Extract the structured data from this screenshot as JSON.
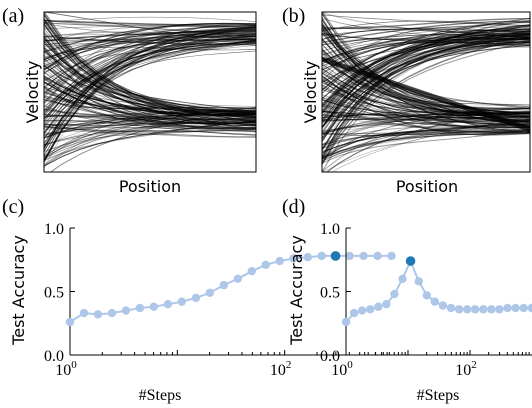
{
  "chart_data": [
    {
      "type": "streamplot",
      "panel_label": "(a)",
      "xlabel": "Position",
      "ylabel": "Velocity"
    },
    {
      "type": "streamplot",
      "panel_label": "(b)",
      "xlabel": "Position",
      "ylabel": "Velocity"
    },
    {
      "type": "scatter",
      "panel_label": "(c)",
      "xlabel": "#Steps",
      "ylabel": "Test Accuracy",
      "xscale": "log",
      "xlim": [
        1,
        1000
      ],
      "ylim": [
        0,
        1
      ],
      "xticks": [
        1,
        100
      ],
      "xtick_labels": [
        "10",
        "10"
      ],
      "xtick_exponents": [
        "0",
        "2"
      ],
      "yticks": [
        0,
        0.5,
        1.0
      ],
      "ytick_labels": [
        "0.0",
        "0.5",
        "1.0"
      ],
      "series": [
        {
          "x": [
            1,
            1.35,
            1.82,
            2.46,
            3.32,
            4.48,
            6.05,
            8.16,
            11.0,
            14.9,
            20.1,
            27.1,
            36.6,
            49.4,
            66.7,
            90.0,
            121,
            164,
            221,
            298,
            403,
            543,
            733,
            990
          ],
          "y": [
            0.26,
            0.33,
            0.32,
            0.33,
            0.35,
            0.37,
            0.38,
            0.4,
            0.42,
            0.45,
            0.49,
            0.55,
            0.6,
            0.66,
            0.71,
            0.74,
            0.76,
            0.77,
            0.78,
            0.78,
            0.78,
            0.78,
            0.78,
            0.78
          ],
          "color": "#aec7e8",
          "highlight_x": 298,
          "highlight_y": 0.78,
          "highlight_color": "#1f77b4"
        }
      ]
    },
    {
      "type": "scatter",
      "panel_label": "(d)",
      "xlabel": "#Steps",
      "ylabel": "Test Accuracy",
      "xscale": "log",
      "xlim": [
        1,
        1000
      ],
      "ylim": [
        0,
        1
      ],
      "xticks": [
        1,
        100
      ],
      "xtick_labels": [
        "10",
        "10"
      ],
      "xtick_exponents": [
        "0",
        "2"
      ],
      "yticks": [
        0,
        0.5,
        1.0
      ],
      "ytick_labels": [
        "0.0",
        "0.5",
        "1.0"
      ],
      "series": [
        {
          "x": [
            1,
            1.35,
            1.82,
            2.46,
            3.32,
            4.48,
            6.05,
            8.16,
            11.0,
            14.9,
            20.1,
            27.1,
            36.6,
            49.4,
            66.7,
            90.0,
            121,
            164,
            221,
            298,
            403,
            543,
            733,
            990
          ],
          "y": [
            0.26,
            0.33,
            0.35,
            0.36,
            0.38,
            0.4,
            0.48,
            0.6,
            0.74,
            0.58,
            0.47,
            0.42,
            0.39,
            0.37,
            0.36,
            0.36,
            0.36,
            0.36,
            0.36,
            0.36,
            0.37,
            0.37,
            0.37,
            0.37
          ],
          "color": "#aec7e8",
          "highlight_x": 11.0,
          "highlight_y": 0.74,
          "highlight_color": "#1f77b4"
        }
      ]
    }
  ]
}
